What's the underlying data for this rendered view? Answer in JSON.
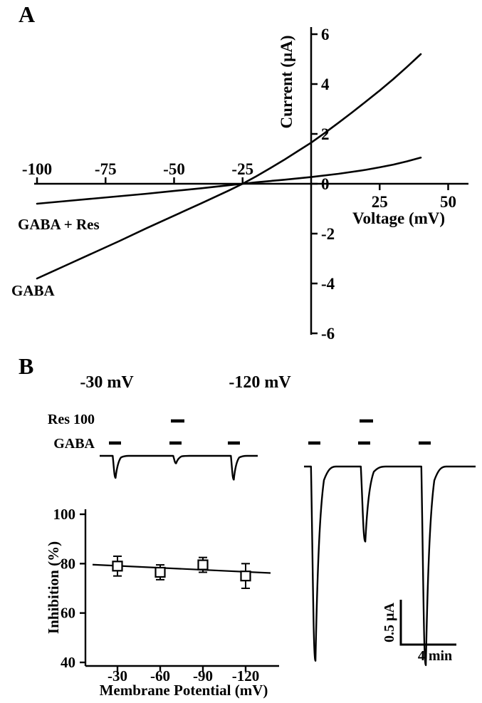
{
  "figure": {
    "panel_a_label": "A",
    "panel_b_label": "B"
  },
  "panel_a": {
    "y_axis_label": "Current (µA)",
    "x_axis_label": "Voltage (mV)",
    "curve_label_gaba_res": "GABA + Res",
    "curve_label_gaba": "GABA"
  },
  "panel_b": {
    "trace_left_title": "-30 mV",
    "trace_right_title": "-120 mV",
    "res_label": "Res 100",
    "gaba_label": "GABA",
    "scale_vertical": "0.5 µA",
    "scale_horizontal": "4 min",
    "inhibition_ylabel": "Inhibition (%)",
    "inhibition_xlabel": "Membrane Potential (mV)"
  },
  "chart_data": [
    {
      "id": "iv_curves",
      "type": "line",
      "title": "",
      "xlabel": "Voltage (mV)",
      "ylabel": "Current (µA)",
      "xlim": [
        -105,
        52
      ],
      "ylim": [
        -6,
        6
      ],
      "x_ticks": [
        -100,
        -75,
        -50,
        -25,
        25,
        50
      ],
      "y_ticks": [
        6,
        4,
        2,
        0,
        -2,
        -4,
        -6
      ],
      "reversal_potential_mV": -25,
      "series": [
        {
          "name": "GABA",
          "x": [
            -100,
            -90,
            -80,
            -70,
            -60,
            -50,
            -40,
            -30,
            -25,
            -20,
            -15,
            -10,
            -5,
            0,
            5,
            10,
            15,
            20,
            25,
            30,
            35,
            40
          ],
          "y": [
            -3.8,
            -3.3,
            -2.8,
            -2.3,
            -1.78,
            -1.28,
            -0.78,
            -0.27,
            0,
            0.3,
            0.62,
            0.95,
            1.3,
            1.65,
            2.04,
            2.45,
            2.87,
            3.3,
            3.74,
            4.2,
            4.69,
            5.2
          ]
        },
        {
          "name": "GABA + Res",
          "x": [
            -100,
            -90,
            -80,
            -70,
            -60,
            -50,
            -40,
            -30,
            -25,
            -20,
            -10,
            0,
            10,
            20,
            25,
            30,
            35,
            40
          ],
          "y": [
            -0.8,
            -0.7,
            -0.6,
            -0.5,
            -0.4,
            -0.29,
            -0.18,
            -0.06,
            0,
            0.06,
            0.16,
            0.27,
            0.4,
            0.56,
            0.66,
            0.77,
            0.9,
            1.05
          ]
        }
      ]
    },
    {
      "id": "inhibition_vs_potential",
      "type": "scatter",
      "xlabel": "Membrane Potential (mV)",
      "ylabel": "Inhibition (%)",
      "ylim": [
        40,
        100
      ],
      "y_ticks": [
        100,
        80,
        60,
        40
      ],
      "x_ticks": [
        -30,
        -60,
        -90,
        -120
      ],
      "x": [
        -30,
        -60,
        -90,
        -120
      ],
      "y": [
        79,
        76.5,
        79.5,
        75
      ],
      "yerr": [
        4,
        3,
        3,
        5
      ],
      "fit_line": {
        "x": [
          -12.5,
          -137.5
        ],
        "y": [
          79.6,
          76.2
        ]
      },
      "marker": "open-square"
    },
    {
      "id": "trace_minus30",
      "type": "trace",
      "holding_potential": "-30 mV",
      "peaks_uA": [
        0.25,
        0.085,
        0.27
      ],
      "condition_per_peak": [
        "GABA",
        "GABA + Res 100",
        "GABA"
      ]
    },
    {
      "id": "trace_minus120",
      "type": "trace",
      "holding_potential": "-120 mV",
      "peaks_uA": [
        2.2,
        0.85,
        2.25
      ],
      "condition_per_peak": [
        "GABA",
        "GABA + Res 100",
        "GABA"
      ],
      "scale_bar": {
        "vertical": "0.5 µA",
        "horizontal": "4 min"
      }
    }
  ]
}
